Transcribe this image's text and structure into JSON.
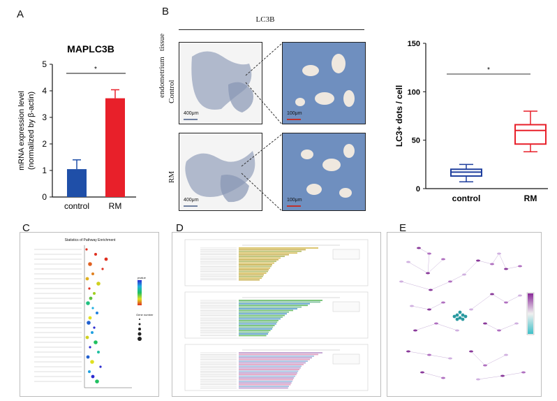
{
  "panels": {
    "A": "A",
    "B": "B",
    "C": "C",
    "D": "D",
    "E": "E"
  },
  "panel_a": {
    "title": "MAPLC3B",
    "significance": "*"
  },
  "panel_b": {
    "header": "LC3B",
    "row_group_label": "endometrium   tissue",
    "row_labels": [
      "Control",
      "RM"
    ],
    "scale_bars": [
      "400μm",
      "100μm",
      "400μm",
      "100μm"
    ]
  },
  "panel_b_box": {
    "significance": "*"
  },
  "chart_data": [
    {
      "type": "bar",
      "title": "MAPLC3B",
      "categories": [
        "control",
        "RM"
      ],
      "values": [
        1.05,
        3.72
      ],
      "error": [
        0.35,
        0.32
      ],
      "colors": [
        "#1f4fa8",
        "#e8202a"
      ],
      "ylabel": "mRNA expression level\n(normalized by β-actin)",
      "ylim": [
        0,
        5
      ],
      "yticks": [
        0,
        1,
        2,
        3,
        4,
        5
      ]
    },
    {
      "type": "box",
      "categories": [
        "control",
        "RM"
      ],
      "boxes": [
        {
          "min": 7,
          "q1": 13,
          "median": 17,
          "q3": 20,
          "max": 25,
          "color": "#1f3f9e"
        },
        {
          "min": 38,
          "q1": 46,
          "median": 60,
          "q3": 66,
          "max": 80,
          "color": "#e8202a"
        }
      ],
      "ylabel": "LC3+ dots / cell",
      "ylim": [
        0,
        150
      ],
      "yticks": [
        0,
        50,
        100,
        150
      ]
    }
  ],
  "panel_c": {
    "title": "Statistics of Pathway Enrichment",
    "legend_pvalue_title": "pvalue",
    "legend_gene_title": "Gene number"
  },
  "panel_d": {
    "sections": 3
  },
  "panel_e": {
    "legend": "gradient"
  }
}
